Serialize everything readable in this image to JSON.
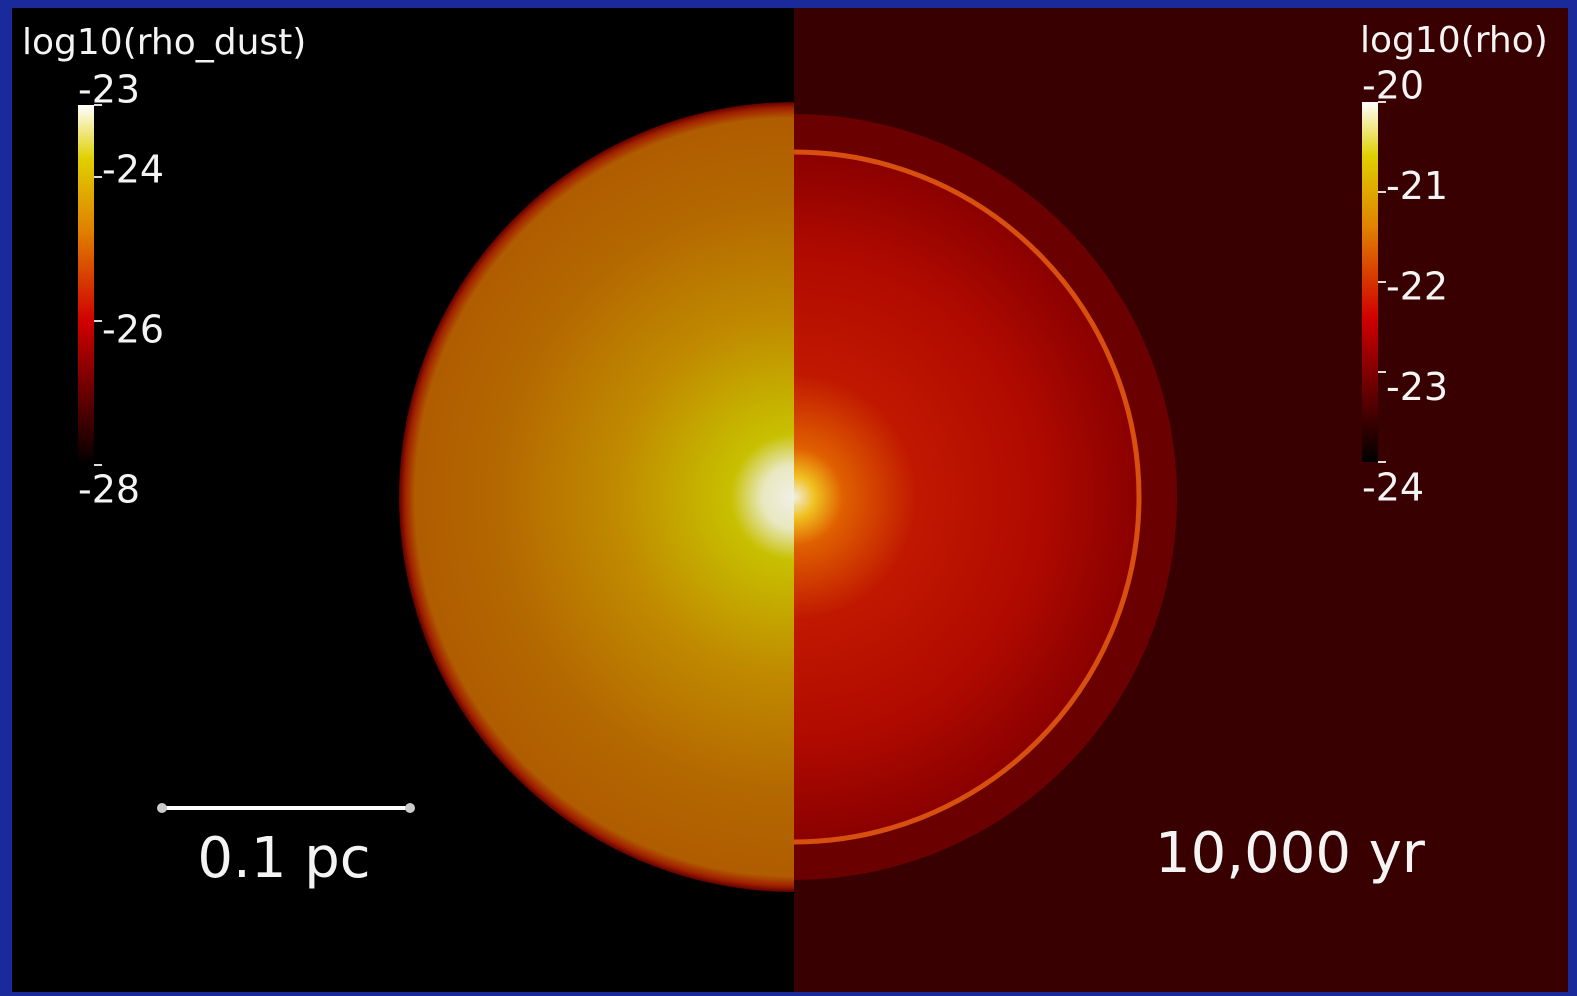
{
  "colorbars": [
    {
      "title": "log10(rho_dust)",
      "range": [
        -28,
        -23
      ],
      "ticks": [
        -23,
        -24,
        -26,
        -28
      ]
    },
    {
      "title": "log10(rho)",
      "range": [
        -24,
        -20
      ],
      "ticks": [
        -20,
        -21,
        -22,
        -23,
        -24
      ]
    }
  ],
  "scale_bar": {
    "label": "0.1 pc"
  },
  "time_label": "10,000 yr"
}
